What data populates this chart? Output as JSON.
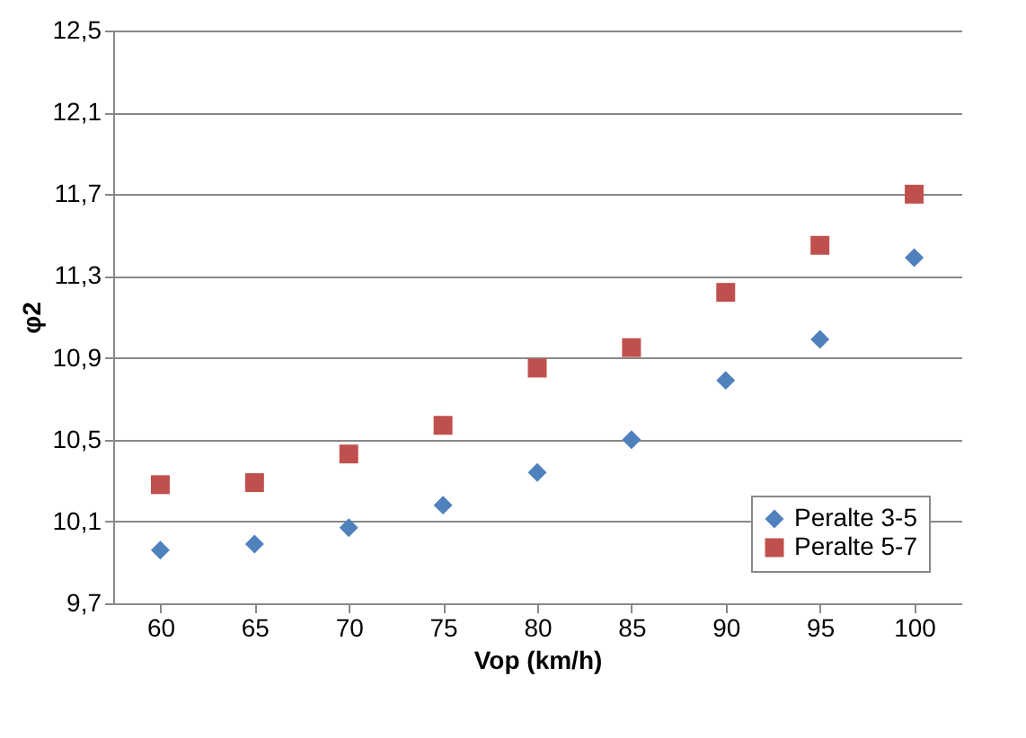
{
  "chart_data": {
    "type": "scatter",
    "xlabel": "Vop (km/h)",
    "ylabel": "φ2",
    "categories": [
      "60",
      "65",
      "70",
      "75",
      "80",
      "85",
      "90",
      "95",
      "100"
    ],
    "series": [
      {
        "name": "Peralte 3-5",
        "color": "#4f81bd",
        "marker": "diamond",
        "values": [
          9.96,
          9.99,
          10.07,
          10.18,
          10.34,
          10.5,
          10.79,
          10.99,
          11.39
        ]
      },
      {
        "name": "Peralte 5-7",
        "color": "#c0504d",
        "marker": "square",
        "values": [
          10.28,
          10.29,
          10.43,
          10.57,
          10.85,
          10.95,
          11.22,
          11.45,
          11.7
        ]
      }
    ],
    "ylim": [
      9.7,
      12.5
    ],
    "yticks": [
      {
        "value": 9.7,
        "label": "9,7"
      },
      {
        "value": 10.1,
        "label": "10,1"
      },
      {
        "value": 10.5,
        "label": "10,5"
      },
      {
        "value": 10.9,
        "label": "10,9"
      },
      {
        "value": 11.3,
        "label": "11,3"
      },
      {
        "value": 11.7,
        "label": "11,7"
      },
      {
        "value": 12.1,
        "label": "12,1"
      },
      {
        "value": 12.5,
        "label": "12,5"
      }
    ],
    "grid": "y",
    "legend": "bottom right"
  }
}
